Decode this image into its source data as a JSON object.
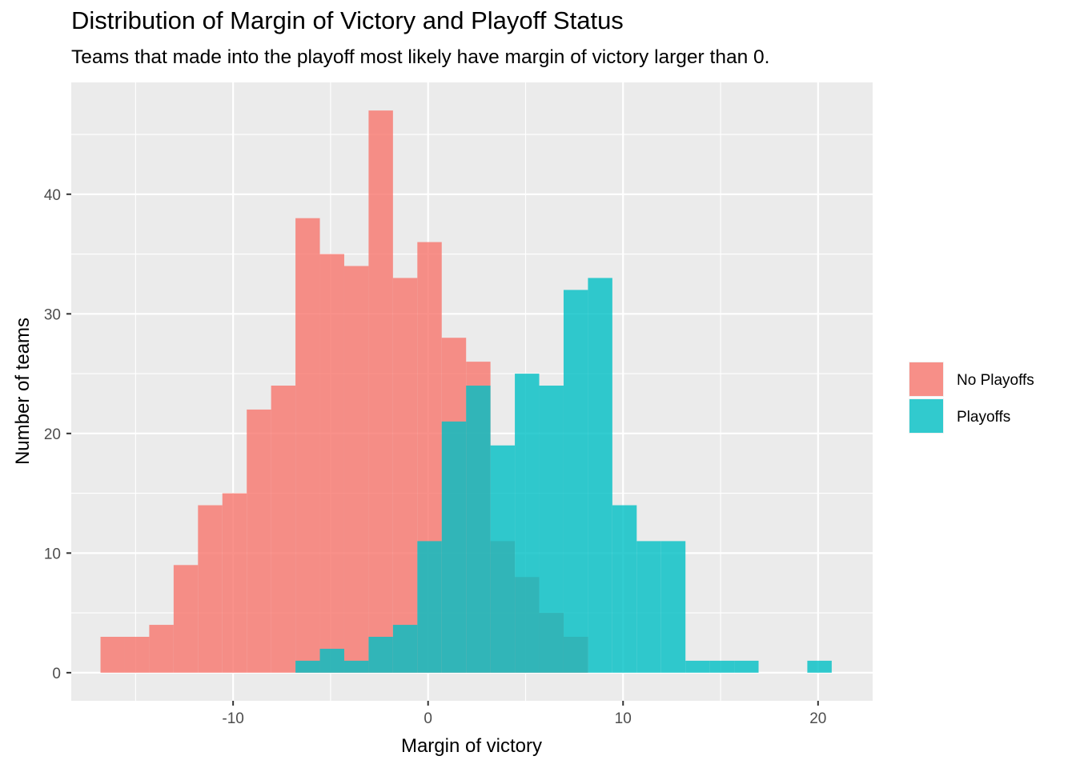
{
  "chart_data": {
    "type": "histogram",
    "title": "Distribution of Margin of Victory and Playoff Status",
    "subtitle": "Teams that made into the playoff most likely have margin of victory larger than 0.",
    "xlabel": "Margin of victory",
    "ylabel": "Number of teams",
    "xlim": [
      -18.3,
      22.8
    ],
    "ylim": [
      -2.35,
      49.35
    ],
    "x_ticks": [
      -10,
      0,
      10,
      20
    ],
    "x_tick_labels": [
      "-10",
      "0",
      "10",
      "20"
    ],
    "y_ticks": [
      0,
      10,
      20,
      30,
      40
    ],
    "y_tick_labels": [
      "0",
      "10",
      "20",
      "30",
      "40"
    ],
    "bin_width": 1.25,
    "grid": true,
    "legend_position": "right",
    "series": [
      {
        "name": "No Playoffs",
        "color": "#F8766D",
        "bins": [
          {
            "x0": -16.8,
            "count": 3
          },
          {
            "x0": -15.55,
            "count": 3
          },
          {
            "x0": -14.3,
            "count": 4
          },
          {
            "x0": -13.05,
            "count": 9
          },
          {
            "x0": -11.8,
            "count": 14
          },
          {
            "x0": -10.55,
            "count": 15
          },
          {
            "x0": -9.3,
            "count": 22
          },
          {
            "x0": -8.05,
            "count": 24
          },
          {
            "x0": -6.8,
            "count": 38
          },
          {
            "x0": -5.55,
            "count": 35
          },
          {
            "x0": -4.3,
            "count": 34
          },
          {
            "x0": -3.05,
            "count": 47
          },
          {
            "x0": -1.8,
            "count": 33
          },
          {
            "x0": -0.55,
            "count": 36
          },
          {
            "x0": 0.7,
            "count": 28
          },
          {
            "x0": 1.95,
            "count": 26
          },
          {
            "x0": 3.2,
            "count": 11
          },
          {
            "x0": 4.45,
            "count": 8
          },
          {
            "x0": 5.7,
            "count": 5
          },
          {
            "x0": 6.95,
            "count": 3
          }
        ]
      },
      {
        "name": "Playoffs",
        "color": "#00BFC4",
        "bins": [
          {
            "x0": -6.8,
            "count": 1
          },
          {
            "x0": -5.55,
            "count": 2
          },
          {
            "x0": -4.3,
            "count": 1
          },
          {
            "x0": -3.05,
            "count": 3
          },
          {
            "x0": -1.8,
            "count": 4
          },
          {
            "x0": -0.55,
            "count": 11
          },
          {
            "x0": 0.7,
            "count": 21
          },
          {
            "x0": 1.95,
            "count": 24
          },
          {
            "x0": 3.2,
            "count": 19
          },
          {
            "x0": 4.45,
            "count": 25
          },
          {
            "x0": 5.7,
            "count": 24
          },
          {
            "x0": 6.95,
            "count": 32
          },
          {
            "x0": 8.2,
            "count": 33
          },
          {
            "x0": 9.45,
            "count": 14
          },
          {
            "x0": 10.7,
            "count": 11
          },
          {
            "x0": 11.95,
            "count": 11
          },
          {
            "x0": 13.2,
            "count": 1
          },
          {
            "x0": 14.45,
            "count": 1
          },
          {
            "x0": 15.7,
            "count": 1
          },
          {
            "x0": 16.95,
            "count": 0
          },
          {
            "x0": 18.2,
            "count": 0
          },
          {
            "x0": 19.45,
            "count": 1
          }
        ]
      }
    ]
  }
}
